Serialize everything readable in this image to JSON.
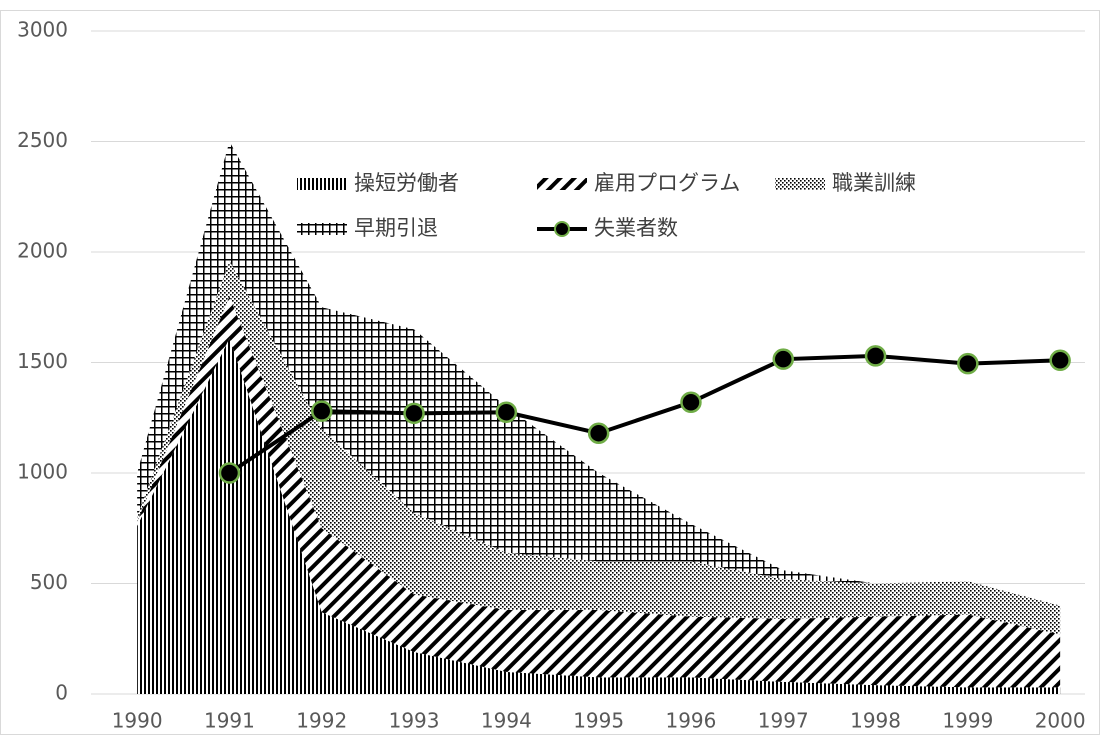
{
  "chart_data": {
    "type": "stacked-area-line",
    "categories": [
      "1990",
      "1991",
      "1992",
      "1993",
      "1994",
      "1995",
      "1996",
      "1997",
      "1998",
      "1999",
      "2000"
    ],
    "series": [
      {
        "name": "操短労働者",
        "color": "#000000",
        "pattern": "vertical-lines",
        "values": [
          760,
          1610,
          370,
          190,
          100,
          75,
          75,
          55,
          40,
          30,
          30
        ]
      },
      {
        "name": "雇用プログラム",
        "color": "#000000",
        "pattern": "diagonal-lines",
        "values": [
          20,
          190,
          380,
          260,
          280,
          305,
          275,
          285,
          310,
          330,
          240
        ]
      },
      {
        "name": "職業訓練",
        "color": "#000000",
        "pattern": "dots",
        "values": [
          20,
          160,
          450,
          370,
          260,
          220,
          250,
          180,
          150,
          150,
          130
        ]
      },
      {
        "name": "早期引退",
        "color": "#000000",
        "pattern": "cross-hatch",
        "values": [
          200,
          540,
          550,
          830,
          660,
          400,
          170,
          40,
          0,
          0,
          0
        ]
      },
      {
        "name": "失業者数",
        "type": "line",
        "color": "#000000",
        "marker_edge_color": "#70ad47",
        "values": [
          null,
          1000,
          1280,
          1270,
          1275,
          1180,
          1320,
          1515,
          1530,
          1495,
          1510
        ]
      }
    ],
    "ylim": [
      0,
      3000
    ],
    "yticks": [
      0,
      500,
      1000,
      1500,
      2000,
      2500,
      3000
    ],
    "grid": true
  }
}
